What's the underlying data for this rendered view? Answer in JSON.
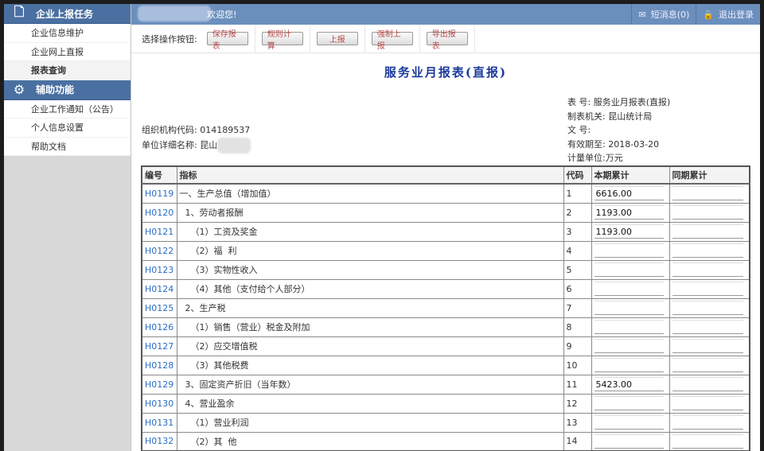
{
  "sidebar": {
    "section1": "企业上报任务",
    "items1": [
      "企业信息维护",
      "企业网上直报",
      "报表查询"
    ],
    "section2": "辅助功能",
    "items2": [
      "企业工作通知（公告）",
      "个人信息设置",
      "帮助文档"
    ]
  },
  "header": {
    "welcome": "欢迎您!",
    "messages": "短消息(0)",
    "logout": "退出登录"
  },
  "toolbar": {
    "label": "选择操作按钮:",
    "buttons": [
      "保存报表",
      "规则计算",
      "上报",
      "强制上报",
      "导出报表"
    ]
  },
  "report": {
    "title": "服务业月报表(直报)",
    "org_code_label": "组织机构代码:",
    "org_code": "014189537",
    "unit_label": "单位详细名称:",
    "unit_name": "昆山",
    "form_no_label": "表 号:",
    "form_no": "服务业月报表(直报)",
    "issuer_label": "制表机关:",
    "issuer": "昆山统计局",
    "doc_no_label": "文 号:",
    "valid_label": "有效期至:",
    "valid": "2018-03-20",
    "unit_measure_label": "计量单位:",
    "unit_measure": "万元"
  },
  "table": {
    "headers": [
      "编号",
      "指标",
      "代码",
      "本期累计",
      "同期累计"
    ],
    "rows": [
      {
        "id": "H0119",
        "name": "一、生产总值（增加值）",
        "code": "1",
        "cur": "6616.00",
        "prev": ""
      },
      {
        "id": "H0120",
        "name": "  1、劳动者报酬",
        "code": "2",
        "cur": "1193.00",
        "prev": ""
      },
      {
        "id": "H0121",
        "name": "    （1）工资及奖金",
        "code": "3",
        "cur": "1193.00",
        "prev": ""
      },
      {
        "id": "H0122",
        "name": "    （2）福  利",
        "code": "4",
        "cur": "",
        "prev": ""
      },
      {
        "id": "H0123",
        "name": "    （3）实物性收入",
        "code": "5",
        "cur": "",
        "prev": ""
      },
      {
        "id": "H0124",
        "name": "    （4）其他（支付给个人部分）",
        "code": "6",
        "cur": "",
        "prev": ""
      },
      {
        "id": "H0125",
        "name": "  2、生产税",
        "code": "7",
        "cur": "",
        "prev": ""
      },
      {
        "id": "H0126",
        "name": "    （1）销售（营业）税金及附加",
        "code": "8",
        "cur": "",
        "prev": ""
      },
      {
        "id": "H0127",
        "name": "    （2）应交增值税",
        "code": "9",
        "cur": "",
        "prev": ""
      },
      {
        "id": "H0128",
        "name": "    （3）其他税费",
        "code": "10",
        "cur": "",
        "prev": ""
      },
      {
        "id": "H0129",
        "name": "  3、固定资产折旧（当年数）",
        "code": "11",
        "cur": "5423.00",
        "prev": ""
      },
      {
        "id": "H0130",
        "name": "  4、营业盈余",
        "code": "12",
        "cur": "",
        "prev": ""
      },
      {
        "id": "H0131",
        "name": "    （1）营业利润",
        "code": "13",
        "cur": "",
        "prev": ""
      },
      {
        "id": "H0132",
        "name": "    （2）其  他",
        "code": "14",
        "cur": "",
        "prev": ""
      }
    ]
  }
}
